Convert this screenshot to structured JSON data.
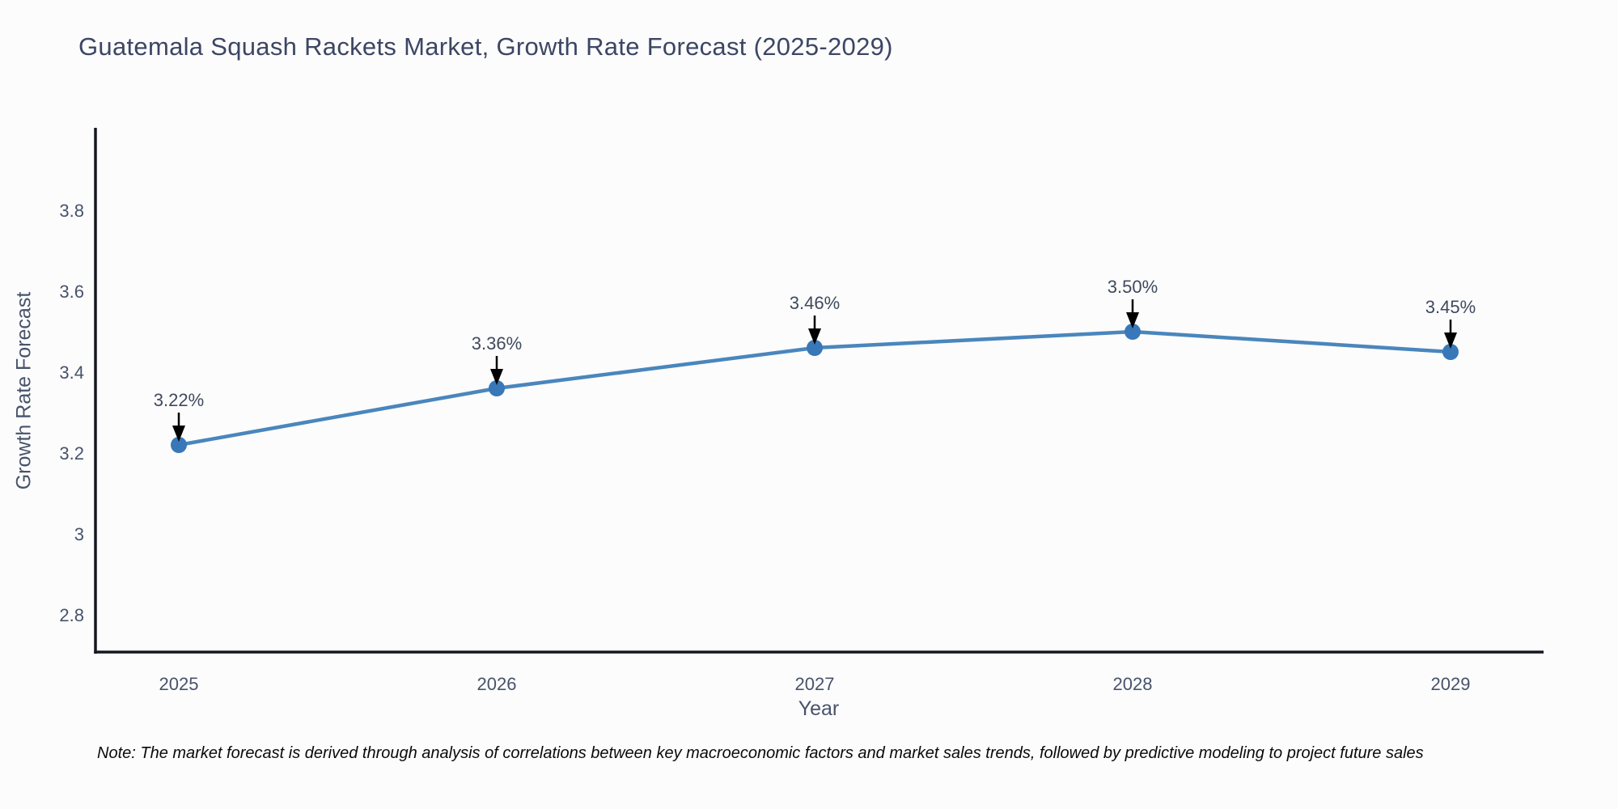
{
  "chart_data": {
    "type": "line",
    "title": "Guatemala Squash Rackets Market, Growth Rate Forecast (2025-2029)",
    "x": [
      2025,
      2026,
      2027,
      2028,
      2029
    ],
    "series": [
      {
        "name": "Growth Rate Forecast",
        "values": [
          3.22,
          3.36,
          3.46,
          3.5,
          3.45
        ]
      }
    ],
    "point_labels": [
      "3.22%",
      "3.36%",
      "3.46%",
      "3.50%",
      "3.45%"
    ],
    "xlabel": "Year",
    "ylabel": "Growth Rate Forecast",
    "yticks": [
      2.8,
      3,
      3.2,
      3.4,
      3.6,
      3.8
    ],
    "ylim": [
      2.71,
      4.0
    ],
    "grid": false,
    "legend_position": "none",
    "marker_style": "circle",
    "annotation_arrows": true,
    "note": "Note: The market forecast is derived through analysis of correlations between key macroeconomic factors and market sales trends, followed by predictive modeling to project future sales",
    "colors": {
      "line": "#4a86bd",
      "marker": "#3878b8",
      "axis": "#141820",
      "tick": "#47536b",
      "annotation_text": "#3f4a5f",
      "arrow": "#000000",
      "title": "#3c4664",
      "background": "#fcfcfc"
    }
  }
}
